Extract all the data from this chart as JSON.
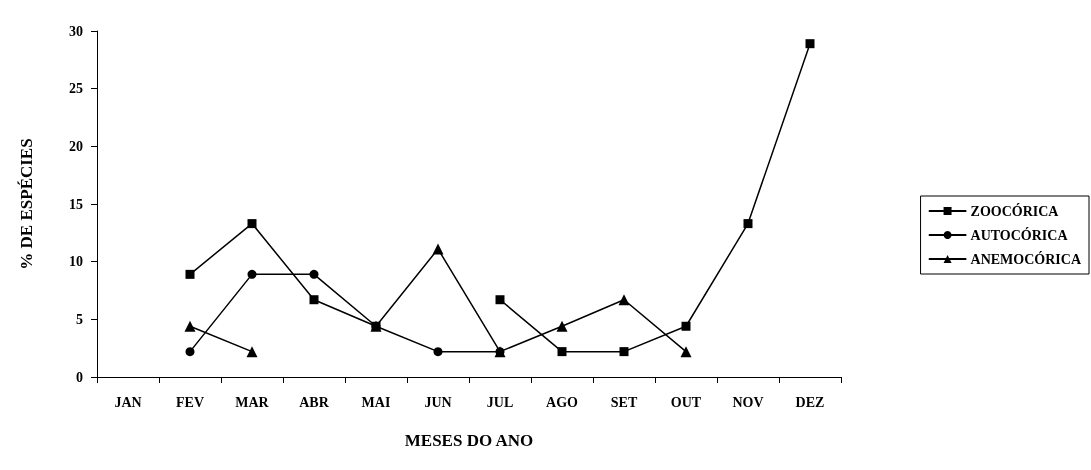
{
  "chart_data": {
    "type": "line",
    "xlabel": "MESES DO ANO",
    "ylabel": "% DE ESPÉCIES",
    "categories": [
      "JAN",
      "FEV",
      "MAR",
      "ABR",
      "MAI",
      "JUN",
      "JUL",
      "AGO",
      "SET",
      "OUT",
      "NOV",
      "DEZ"
    ],
    "series": [
      {
        "name": "ZOOCÓRICA",
        "color": "#000000",
        "marker": "square",
        "values": [
          null,
          8.9,
          13.3,
          6.7,
          4.4,
          null,
          6.7,
          2.2,
          2.2,
          4.4,
          13.3,
          28.9
        ]
      },
      {
        "name": "AUTOCÓRICA",
        "color": "#000000",
        "marker": "circle",
        "values": [
          null,
          2.2,
          8.9,
          8.9,
          4.4,
          2.2,
          2.2,
          null,
          null,
          null,
          null,
          null
        ]
      },
      {
        "name": "ANEMOCÓRICA",
        "color": "#000000",
        "marker": "triangle",
        "values": [
          null,
          4.4,
          2.2,
          null,
          4.4,
          11.1,
          2.2,
          4.4,
          6.7,
          2.2,
          null,
          null
        ]
      }
    ],
    "ylim": [
      0,
      30
    ],
    "yticks": [
      0,
      5,
      10,
      15,
      20,
      25,
      30
    ],
    "grid": false,
    "legend": "right",
    "line_style": "solid"
  }
}
